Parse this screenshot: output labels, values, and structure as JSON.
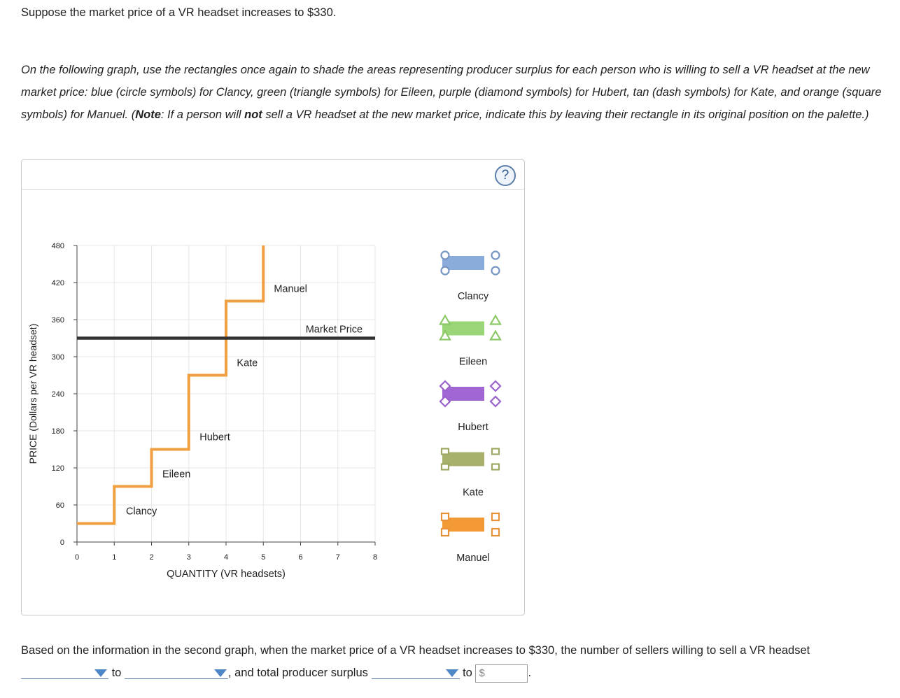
{
  "question": {
    "intro": "Suppose the market price of a VR headset increases to $330.",
    "instructions_part1": "On the following graph, use the rectangles once again to shade the areas representing producer surplus for each person who is willing to sell a VR headset at the new market price: blue (circle symbols) for Clancy, green (triangle symbols) for Eileen, purple (diamond symbols) for Hubert, tan (dash symbols) for Kate, and orange (square symbols) for Manuel. (",
    "note_label": "Note",
    "instructions_part2": ": If a person will ",
    "not_label": "not",
    "instructions_part3": " sell a VR headset at the new market price, indicate this by leaving their rectangle in its original position on the palette.)"
  },
  "graph": {
    "help_icon": "?",
    "market_price_label": "Market Price",
    "market_price": 330,
    "supply_color": "#f0a040",
    "market_line_color": "#333333"
  },
  "chart_data": {
    "type": "step",
    "title": "",
    "xlabel": "QUANTITY (VR headsets)",
    "ylabel": "PRICE (Dollars per VR headset)",
    "xlim": [
      0,
      8
    ],
    "ylim": [
      0,
      480
    ],
    "x_ticks": [
      0,
      1,
      2,
      3,
      4,
      5,
      6,
      7,
      8
    ],
    "y_ticks": [
      0,
      60,
      120,
      180,
      240,
      300,
      360,
      420,
      480
    ],
    "grid": true,
    "steps": [
      {
        "seller": "Clancy",
        "from": 0,
        "to": 1,
        "price": 30
      },
      {
        "seller": "Eileen",
        "from": 1,
        "to": 2,
        "price": 90
      },
      {
        "seller": "Hubert",
        "from": 2,
        "to": 3,
        "price": 150
      },
      {
        "seller": "Kate",
        "from": 3,
        "to": 4,
        "price": 270
      },
      {
        "seller": "Manuel",
        "from": 4,
        "to": 5,
        "price": 390
      }
    ],
    "annotations": [
      {
        "text": "Clancy",
        "x": 1.73,
        "y": 45
      },
      {
        "text": "Eileen",
        "x": 2.67,
        "y": 105
      },
      {
        "text": "Hubert",
        "x": 3.7,
        "y": 165
      },
      {
        "text": "Kate",
        "x": 4.57,
        "y": 285
      },
      {
        "text": "Manuel",
        "x": 5.73,
        "y": 405
      }
    ],
    "market_price_line": 330
  },
  "palette": [
    {
      "name": "Clancy",
      "color": "#8aacda",
      "handle": "circle",
      "stroke": "#7896c2"
    },
    {
      "name": "Eileen",
      "color": "#9ad677",
      "handle": "triangle",
      "stroke": "#8bc868"
    },
    {
      "name": "Hubert",
      "color": "#a066d3",
      "handle": "diamond",
      "stroke": "#9a62cc"
    },
    {
      "name": "Kate",
      "color": "#a9b06c",
      "handle": "dash",
      "stroke": "#a0a664"
    },
    {
      "name": "Manuel",
      "color": "#f39a36",
      "handle": "square",
      "stroke": "#e8923a"
    }
  ],
  "bottom": {
    "text1": "Based on the information in the second graph, when the market price of a VR headset increases to $330, the number of sellers willing to sell a VR headset",
    "to1": "to",
    "text2": ", and total producer surplus",
    "to2": "to",
    "dollar_sign": "$",
    "period": "."
  }
}
